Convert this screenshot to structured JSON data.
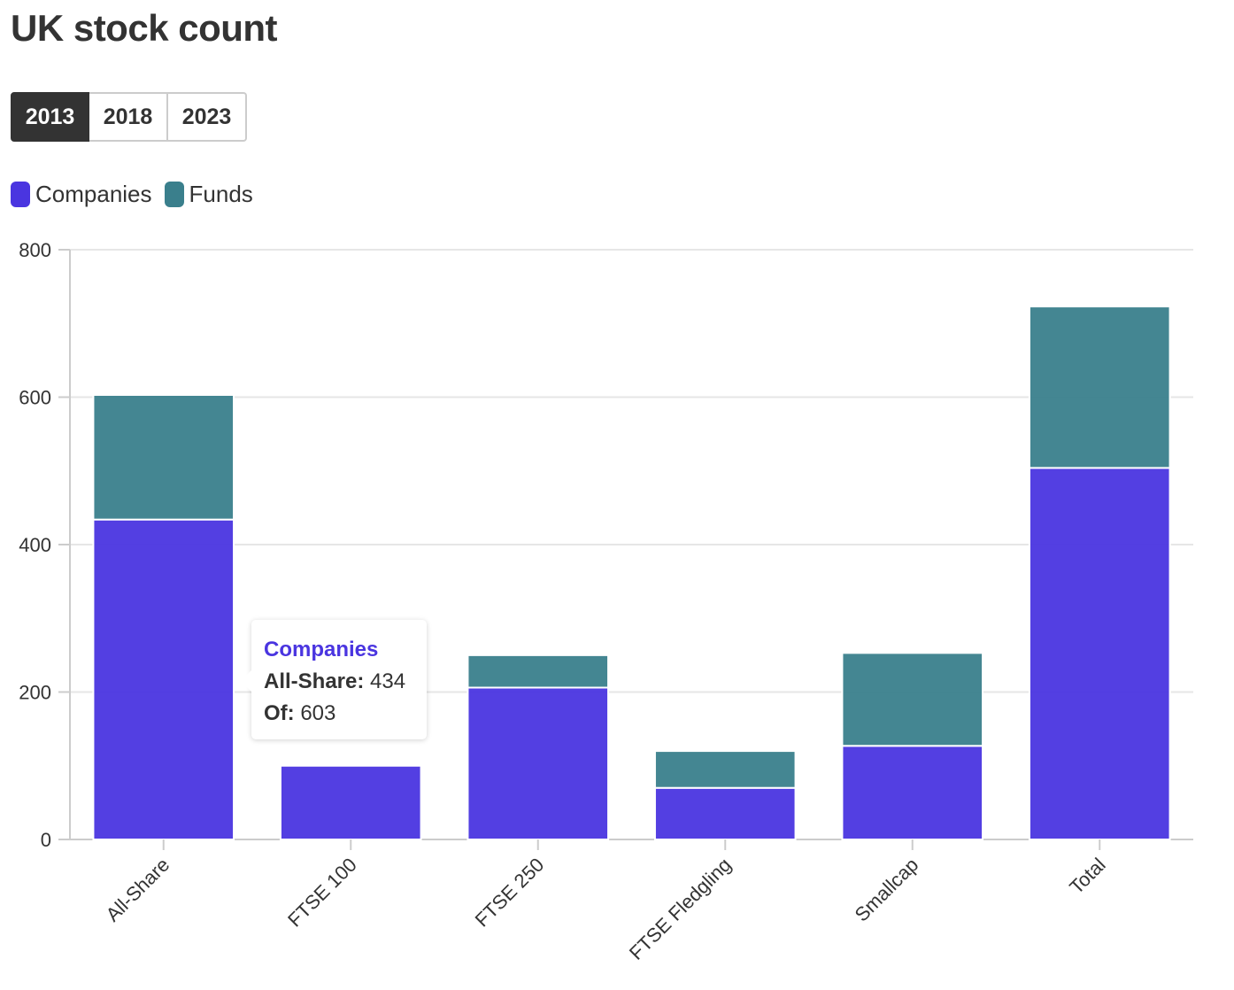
{
  "title": "UK stock count",
  "year_buttons": [
    {
      "label": "2013",
      "active": true
    },
    {
      "label": "2018",
      "active": false
    },
    {
      "label": "2023",
      "active": false
    }
  ],
  "legend": [
    {
      "label": "Companies",
      "color": "#4a35e0"
    },
    {
      "label": "Funds",
      "color": "#3a7f8c"
    }
  ],
  "tooltip": {
    "series": "Companies",
    "row1_label": "All-Share:",
    "row1_value": "434",
    "row2_label": "Of:",
    "row2_value": "603"
  },
  "chart_data": {
    "type": "bar",
    "stacked": true,
    "categories": [
      "All-Share",
      "FTSE 100",
      "FTSE 250",
      "FTSE Fledgling",
      "Smallcap",
      "Total"
    ],
    "series": [
      {
        "name": "Companies",
        "color": "#4a35e0",
        "values": [
          434,
          100,
          206,
          70,
          127,
          504
        ]
      },
      {
        "name": "Funds",
        "color": "#3a7f8c",
        "values": [
          169,
          0,
          44,
          50,
          126,
          219
        ]
      }
    ],
    "ylim": [
      0,
      800
    ],
    "yticks": [
      0,
      200,
      400,
      600,
      800
    ],
    "grid": true,
    "legend_position": "top-left"
  }
}
